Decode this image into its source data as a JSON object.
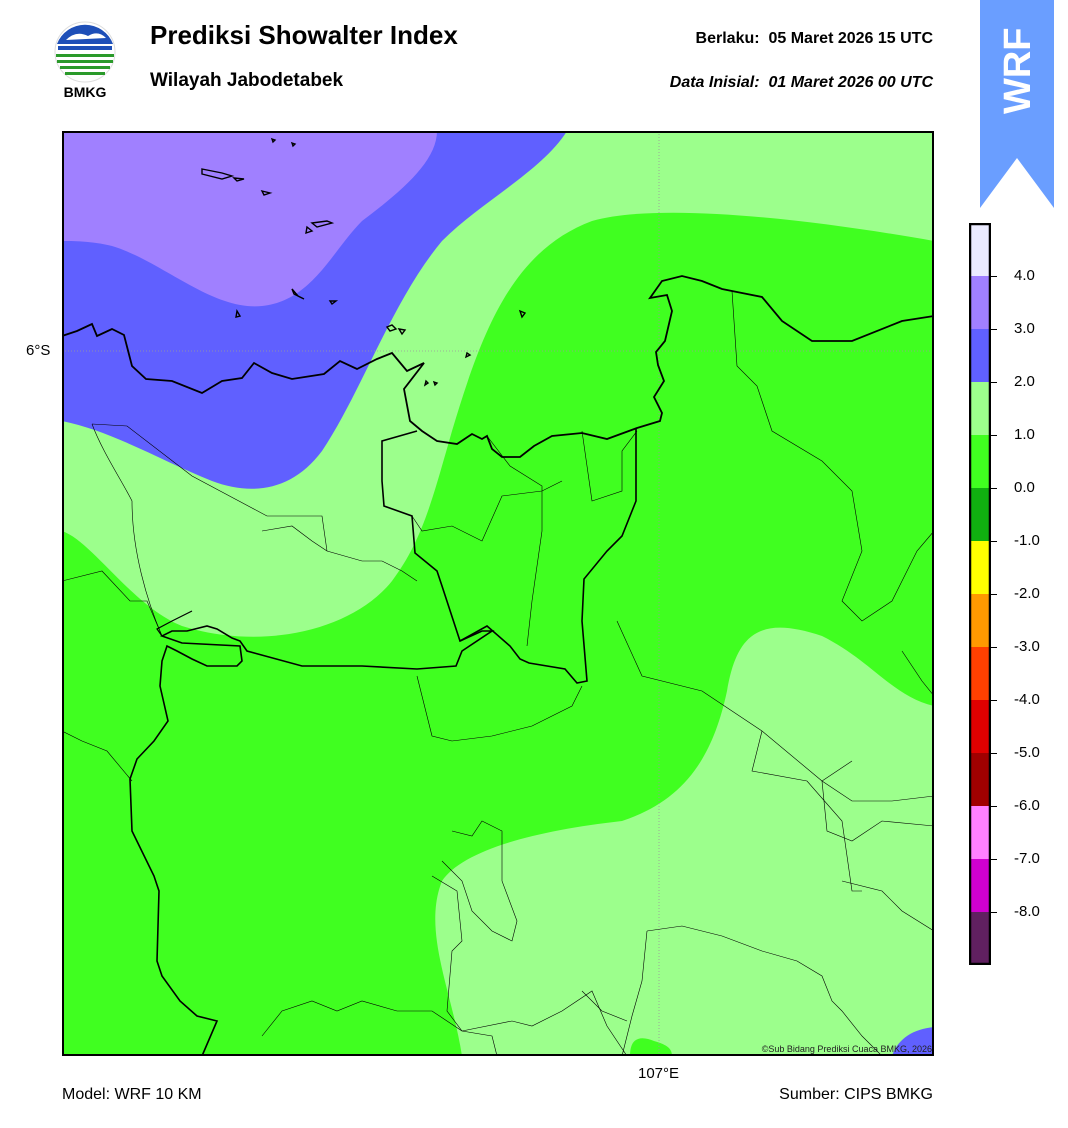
{
  "header": {
    "title": "Prediksi Showalter Index",
    "subtitle": "Wilayah Jabodetabek",
    "valid_label": "Berlaku:",
    "valid_time": "05 Maret 2026 15 UTC",
    "init_label": "Data Inisial:",
    "init_time": "01 Maret 2026 00 UTC"
  },
  "logo": {
    "icon": "bmkg-logo-icon",
    "text": "BMKG"
  },
  "badge": {
    "text": "WRF",
    "color": "#6a9eff"
  },
  "map": {
    "lat_label": "6°S",
    "lon_label": "107°E",
    "copyright": "©Sub Bidang Prediksi Cuaca BMKG, 2026"
  },
  "colorbar": {
    "labels": [
      "4.0",
      "3.0",
      "2.0",
      "1.0",
      "0.0",
      "-1.0",
      "-2.0",
      "-3.0",
      "-4.0",
      "-5.0",
      "-6.0",
      "-7.0",
      "-8.0"
    ],
    "colors": [
      "#ebebff",
      "#a080ff",
      "#6060ff",
      "#9cff8c",
      "#40ff20",
      "#10b010",
      "#ffff00",
      "#ff9a00",
      "#ff4000",
      "#e00000",
      "#a00000",
      "#ff80ff",
      "#d000d0",
      "#602060"
    ]
  },
  "footer": {
    "model": "Model: WRF 10 KM",
    "source": "Sumber: CIPS BMKG"
  }
}
